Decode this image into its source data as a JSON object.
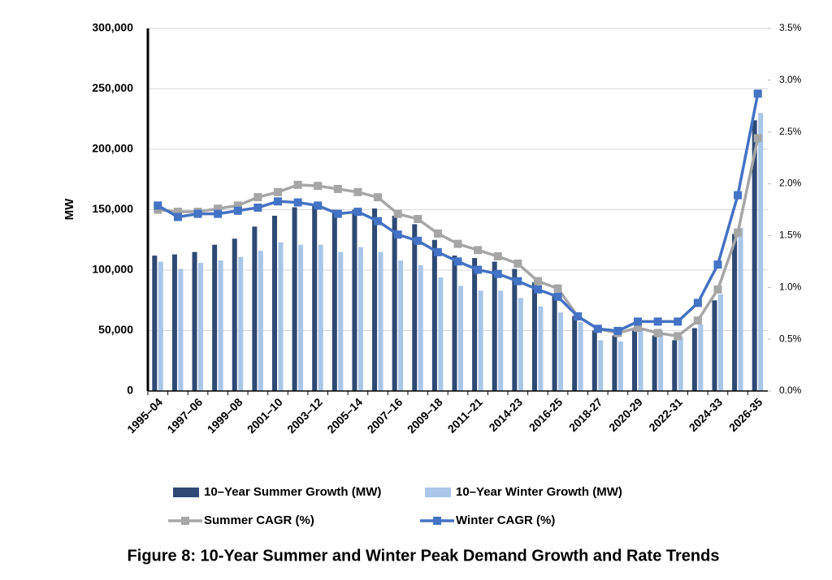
{
  "chart_data": {
    "type": "bar",
    "caption": "Figure 8: 10-Year Summer and Winter Peak Demand Growth and Rate Trends",
    "y_label": "MW",
    "categories": [
      "1995–04",
      null,
      "1997–06",
      null,
      "1999–08",
      null,
      "2001–10",
      null,
      "2003–12",
      null,
      "2005–14",
      null,
      "2007–16",
      null,
      "2009–18",
      null,
      "2011–21",
      null,
      "2014-23",
      null,
      "2016-25",
      null,
      "2018-27",
      null,
      "2020-29",
      null,
      "2022-31",
      null,
      "2024-33",
      null,
      "2026-35"
    ],
    "ylim": [
      0,
      300000
    ],
    "yticks": [
      0,
      {
        "value": 50000,
        "label": "50,000"
      },
      {
        "value": 100000,
        "label": "100,000"
      },
      {
        "value": 150000,
        "label": "150,000"
      },
      {
        "value": 200000,
        "label": "200,000"
      },
      {
        "value": 250000,
        "label": "250,000"
      },
      {
        "value": 300000,
        "label": "300,000"
      }
    ],
    "y2lim": [
      0,
      3.5
    ],
    "y2ticks": [
      {
        "value": 0,
        "label": "0.0%"
      },
      {
        "value": 0.5,
        "label": "0.5%"
      },
      {
        "value": 1,
        "label": "1.0%"
      },
      {
        "value": 1.5,
        "label": "1.5%"
      },
      {
        "value": 2,
        "label": "2.0%"
      },
      {
        "value": 2.5,
        "label": "2.5%"
      },
      {
        "value": 3,
        "label": "3.0%"
      },
      {
        "value": 3.5,
        "label": "3.5%"
      }
    ],
    "grid": true,
    "series": [
      {
        "name": "10–Year Summer Growth (MW)",
        "type": "bar",
        "color": "#2e4a74",
        "values": [
          112000,
          113000,
          115000,
          121000,
          126000,
          136000,
          145000,
          152000,
          155000,
          150000,
          150000,
          151000,
          145000,
          138000,
          125000,
          112000,
          110000,
          107000,
          101000,
          90000,
          80000,
          62000,
          50000,
          46000,
          50000,
          46000,
          42000,
          52000,
          75000,
          130000,
          224000
        ]
      },
      {
        "name": "10–Year Winter Growth (MW)",
        "type": "bar",
        "color": "#a9c6e8",
        "values": [
          107000,
          101000,
          106000,
          108000,
          111000,
          116000,
          123000,
          121000,
          121000,
          115000,
          119000,
          115000,
          108000,
          104000,
          94000,
          87000,
          83000,
          83000,
          77000,
          70000,
          65000,
          57000,
          42000,
          41000,
          52000,
          50000,
          45000,
          55000,
          80000,
          135000,
          230000
        ]
      },
      {
        "name": "Summer CAGR (%)",
        "type": "line",
        "axis": "y2",
        "color": "#a6a6a6",
        "values": [
          1.75,
          1.73,
          1.73,
          1.76,
          1.79,
          1.87,
          1.92,
          1.99,
          1.98,
          1.95,
          1.92,
          1.87,
          1.71,
          1.66,
          1.52,
          1.42,
          1.36,
          1.3,
          1.23,
          1.06,
          0.99,
          0.72,
          0.6,
          0.56,
          0.61,
          0.56,
          0.53,
          0.68,
          0.98,
          1.53,
          2.44
        ]
      },
      {
        "name": "Winter CAGR (%)",
        "type": "line",
        "axis": "y2",
        "color": "#4472c4",
        "values": [
          1.79,
          1.68,
          1.71,
          1.71,
          1.74,
          1.77,
          1.83,
          1.82,
          1.79,
          1.71,
          1.73,
          1.64,
          1.51,
          1.45,
          1.34,
          1.25,
          1.17,
          1.13,
          1.06,
          0.98,
          0.91,
          0.72,
          0.6,
          0.58,
          0.67,
          0.67,
          0.67,
          0.85,
          1.22,
          1.89,
          2.87
        ]
      }
    ]
  }
}
